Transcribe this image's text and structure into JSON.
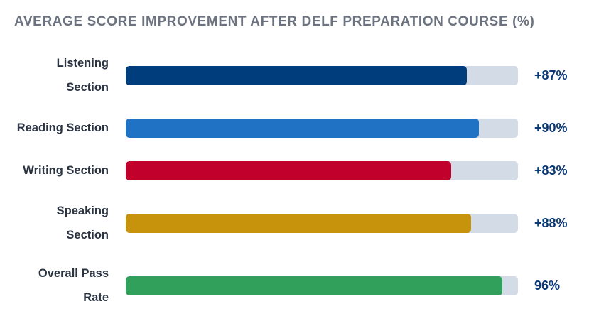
{
  "chart_data": {
    "type": "bar",
    "orientation": "horizontal",
    "title": "AVERAGE SCORE IMPROVEMENT AFTER DELF PREPARATION COURSE (%)",
    "categories": [
      "Listening Section",
      "Reading Section",
      "Writing Section",
      "Speaking Section",
      "Overall Pass Rate"
    ],
    "values": [
      87,
      90,
      83,
      88,
      96
    ],
    "value_labels": [
      "+87%",
      "+90%",
      "+83%",
      "+88%",
      "96%"
    ],
    "xlim": [
      0,
      100
    ],
    "colors": [
      "#003d7c",
      "#1f72c4",
      "#c1002b",
      "#c7920c",
      "#31a05a"
    ],
    "track_color": "#d3dbe6",
    "grid": false
  }
}
